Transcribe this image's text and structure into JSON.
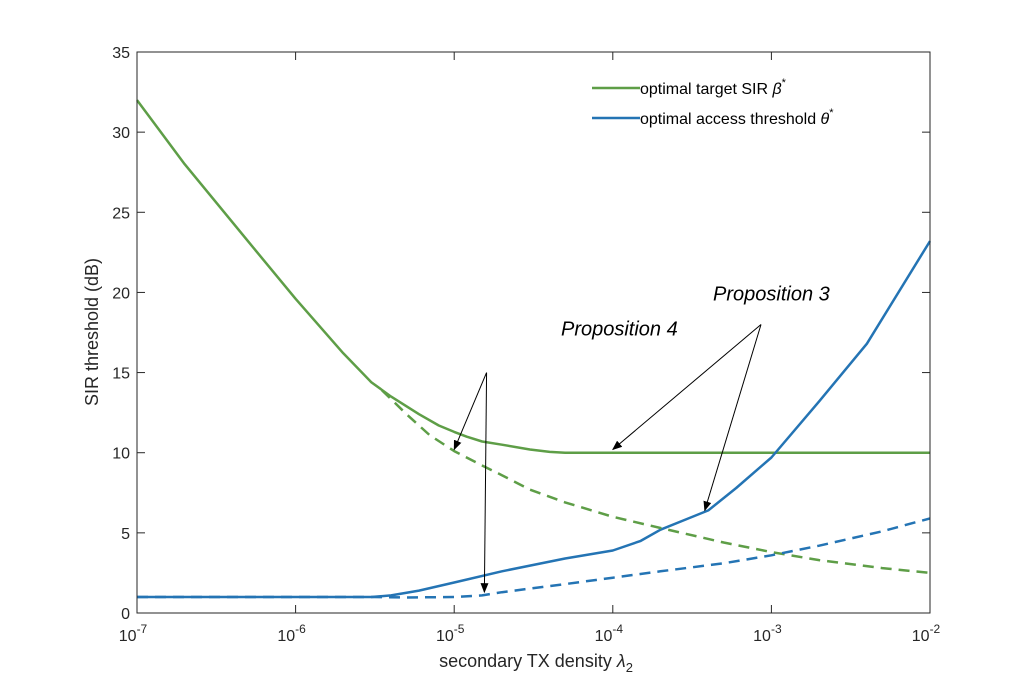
{
  "chart_data": {
    "type": "line",
    "title": "",
    "xlabel": "secondary TX density",
    "xlabel_symbol": "λ",
    "xlabel_subscript": "2",
    "ylabel": "SIR threshold (dB)",
    "xscale": "log",
    "xlim": [
      1e-07,
      0.01
    ],
    "ylim": [
      0,
      35
    ],
    "grid": false,
    "legend_position": "top-right",
    "x_ticks": [
      {
        "base": "10",
        "exp": "-7",
        "value": 1e-07
      },
      {
        "base": "10",
        "exp": "-6",
        "value": 1e-06
      },
      {
        "base": "10",
        "exp": "-5",
        "value": 1e-05
      },
      {
        "base": "10",
        "exp": "-4",
        "value": 0.0001
      },
      {
        "base": "10",
        "exp": "-3",
        "value": 0.001
      },
      {
        "base": "10",
        "exp": "-2",
        "value": 0.01
      }
    ],
    "y_ticks": [
      "0",
      "5",
      "10",
      "15",
      "20",
      "25",
      "30",
      "35"
    ],
    "colors": {
      "green": "#5e9e47",
      "blue": "#2474b4"
    },
    "series": [
      {
        "name": "optimal target SIR",
        "name_symbol": "β",
        "name_sup": "*",
        "color": "#5e9e47",
        "style": "solid",
        "x": [
          1e-07,
          2e-07,
          5e-07,
          1e-06,
          2e-06,
          3e-06,
          4e-06,
          6e-06,
          8e-06,
          1e-05,
          1.2e-05,
          1.5e-05,
          2e-05,
          3e-05,
          4e-05,
          5e-05,
          0.0001,
          0.001,
          0.01
        ],
        "y": [
          32.0,
          28.0,
          23.2,
          19.6,
          16.2,
          14.4,
          13.5,
          12.4,
          11.7,
          11.3,
          11.0,
          10.7,
          10.5,
          10.2,
          10.05,
          10.0,
          10.0,
          10.0,
          10.0
        ]
      },
      {
        "name": "optimal access threshold",
        "name_symbol": "θ",
        "name_sup": "*",
        "color": "#2474b4",
        "style": "solid",
        "x": [
          1e-07,
          1e-06,
          3e-06,
          4e-06,
          6e-06,
          1e-05,
          2e-05,
          5e-05,
          0.0001,
          0.00015,
          0.0002,
          0.0003,
          0.0004,
          0.0006,
          0.001,
          0.002,
          0.004,
          0.01
        ],
        "y": [
          1.0,
          1.0,
          1.0,
          1.1,
          1.4,
          1.9,
          2.6,
          3.4,
          3.9,
          4.5,
          5.2,
          5.9,
          6.4,
          7.8,
          9.7,
          13.2,
          16.8,
          23.2
        ]
      },
      {
        "color": "#5e9e47",
        "style": "dashed",
        "x": [
          3.5e-06,
          5e-06,
          7e-06,
          1e-05,
          1.5e-05,
          2e-05,
          3e-05,
          5e-05,
          0.0001,
          0.0002,
          0.0005,
          0.001,
          0.002,
          0.005,
          0.01
        ],
        "y": [
          13.9,
          12.4,
          11.1,
          10.1,
          9.2,
          8.6,
          7.7,
          6.9,
          6.0,
          5.3,
          4.4,
          3.8,
          3.3,
          2.8,
          2.5
        ]
      },
      {
        "color": "#2474b4",
        "style": "dashed",
        "x": [
          1e-07,
          1e-06,
          3e-06,
          5e-06,
          1e-05,
          1.5e-05,
          2e-05,
          5e-05,
          0.0001,
          0.0002,
          0.0005,
          0.001,
          0.002,
          0.005,
          0.01
        ],
        "y": [
          1.0,
          1.0,
          1.0,
          0.97,
          1.0,
          1.1,
          1.3,
          1.8,
          2.2,
          2.6,
          3.1,
          3.6,
          4.2,
          5.1,
          5.9
        ]
      }
    ],
    "annotations": [
      {
        "text": "Proposition 4",
        "tx": 0.00011,
        "ty": 17.3,
        "anchor_x": 1.6e-05,
        "anchor_y": 15.0,
        "targets": [
          [
            1e-05,
            10.2
          ],
          [
            1.55e-05,
            1.3
          ]
        ]
      },
      {
        "text": "Proposition 3",
        "tx": 0.001,
        "ty": 19.5,
        "anchor_x": 0.00086,
        "anchor_y": 18.0,
        "targets": [
          [
            0.0001,
            10.2
          ],
          [
            0.00038,
            6.4
          ]
        ]
      }
    ]
  }
}
